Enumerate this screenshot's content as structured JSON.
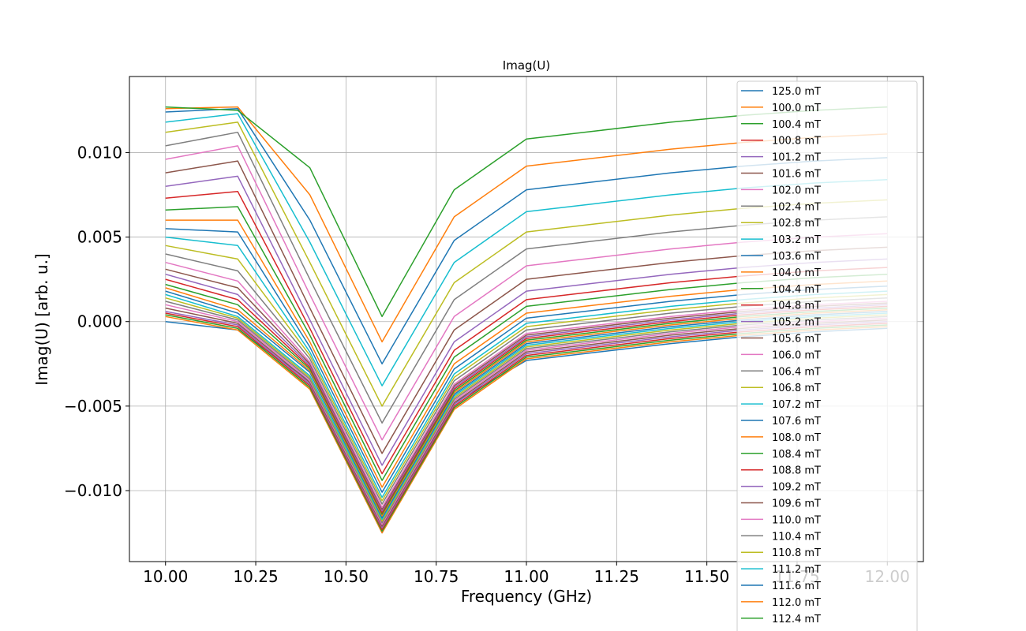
{
  "chart_data": {
    "type": "line",
    "title": "Imag(U)",
    "xlabel": "Frequency (GHz)",
    "ylabel": "Imag(U) [arb. u.]",
    "xlim": [
      9.9,
      12.1
    ],
    "ylim": [
      -0.0142,
      0.0145
    ],
    "x": [
      10.0,
      10.2,
      10.4,
      10.6,
      10.8,
      11.0,
      11.2,
      11.4,
      11.6,
      11.8,
      12.0
    ],
    "x_ticks": [
      10.0,
      10.25,
      10.5,
      10.75,
      11.0,
      11.25,
      11.5,
      11.75,
      12.0
    ],
    "x_tick_labels": [
      "10.00",
      "10.25",
      "10.50",
      "10.75",
      "11.00",
      "11.25",
      "11.50",
      "11.75",
      "12.00"
    ],
    "y_ticks": [
      -0.01,
      -0.005,
      0.0,
      0.005,
      0.01
    ],
    "y_tick_labels": [
      "−0.010",
      "−0.005",
      "0.000",
      "0.005",
      "0.010"
    ],
    "grid": true,
    "legend_position": "right",
    "colors": [
      "#1f77b4",
      "#ff7f0e",
      "#2ca02c",
      "#d62728",
      "#9467bd",
      "#8c564b",
      "#e377c2",
      "#7f7f7f",
      "#bcbd22",
      "#17becf"
    ],
    "series": [
      {
        "name": "125.0 mT",
        "values": [
          0.0,
          -0.0005,
          -0.0035,
          -0.0125,
          -0.0048,
          -0.0023,
          -0.0018,
          -0.0013,
          -0.0009,
          -0.0006,
          -0.0004
        ]
      },
      {
        "name": "100.0 mT",
        "values": [
          0.0003,
          -0.0005,
          -0.004,
          -0.0125,
          -0.0052,
          -0.0022,
          -0.0017,
          -0.0012,
          -0.0008,
          -0.0005,
          -0.0003
        ]
      },
      {
        "name": "100.4 mT",
        "values": [
          0.0004,
          -0.0004,
          -0.0039,
          -0.0124,
          -0.0051,
          -0.0021,
          -0.0016,
          -0.0011,
          -0.0007,
          -0.0004,
          -0.0002
        ]
      },
      {
        "name": "100.8 mT",
        "values": [
          0.0005,
          -0.0003,
          -0.0038,
          -0.0123,
          -0.005,
          -0.002,
          -0.0015,
          -0.001,
          -0.0006,
          -0.0003,
          -0.0001
        ]
      },
      {
        "name": "101.2 mT",
        "values": [
          0.0006,
          -0.0002,
          -0.0037,
          -0.0122,
          -0.0049,
          -0.0019,
          -0.0014,
          -0.0009,
          -0.0005,
          -0.0002,
          0.0
        ]
      },
      {
        "name": "101.6 mT",
        "values": [
          0.0008,
          -0.0001,
          -0.0036,
          -0.0121,
          -0.0048,
          -0.0018,
          -0.0013,
          -0.0008,
          -0.0004,
          -0.0001,
          0.0001
        ]
      },
      {
        "name": "102.0 mT",
        "values": [
          0.001,
          0.0,
          -0.0035,
          -0.012,
          -0.0047,
          -0.0017,
          -0.0012,
          -0.0007,
          -0.0003,
          0.0,
          0.0002
        ]
      },
      {
        "name": "102.4 mT",
        "values": [
          0.0012,
          0.0001,
          -0.0034,
          -0.0119,
          -0.0046,
          -0.0016,
          -0.0011,
          -0.0006,
          -0.0002,
          0.0001,
          0.0003
        ]
      },
      {
        "name": "102.8 mT",
        "values": [
          0.0014,
          0.0002,
          -0.0033,
          -0.0118,
          -0.0045,
          -0.0015,
          -0.001,
          -0.0005,
          -0.0001,
          0.0002,
          0.0004
        ]
      },
      {
        "name": "103.2 mT",
        "values": [
          0.0016,
          0.0003,
          -0.0032,
          -0.0117,
          -0.0044,
          -0.0014,
          -0.0009,
          -0.0004,
          0.0,
          0.0003,
          0.0005
        ]
      },
      {
        "name": "103.6 mT",
        "values": [
          0.0018,
          0.0005,
          -0.003,
          -0.0116,
          -0.0043,
          -0.0013,
          -0.0008,
          -0.0003,
          0.0001,
          0.0004,
          0.0006
        ]
      },
      {
        "name": "104.0 mT",
        "values": [
          0.002,
          0.0007,
          -0.0029,
          -0.0115,
          -0.0042,
          -0.0012,
          -0.0007,
          -0.0002,
          0.0002,
          0.0005,
          0.0007
        ]
      },
      {
        "name": "104.4 mT",
        "values": [
          0.0022,
          0.001,
          -0.0028,
          -0.0114,
          -0.0041,
          -0.0011,
          -0.0006,
          -0.0001,
          0.0003,
          0.0006,
          0.0008
        ]
      },
      {
        "name": "104.8 mT",
        "values": [
          0.0025,
          0.0013,
          -0.0027,
          -0.0113,
          -0.004,
          -0.001,
          -0.0005,
          0.0,
          0.0004,
          0.0007,
          0.0009
        ]
      },
      {
        "name": "105.2 mT",
        "values": [
          0.0028,
          0.0016,
          -0.0026,
          -0.0112,
          -0.0039,
          -0.0009,
          -0.0004,
          0.0001,
          0.0005,
          0.0008,
          0.001
        ]
      },
      {
        "name": "105.6 mT",
        "values": [
          0.0031,
          0.002,
          -0.0025,
          -0.0111,
          -0.0038,
          -0.0008,
          -0.0003,
          0.0002,
          0.0006,
          0.0009,
          0.0011
        ]
      },
      {
        "name": "106.0 mT",
        "values": [
          0.0035,
          0.0024,
          -0.0024,
          -0.011,
          -0.0037,
          -0.0007,
          -0.0002,
          0.0003,
          0.0007,
          0.001,
          0.0012
        ]
      },
      {
        "name": "106.4 mT",
        "values": [
          0.004,
          0.003,
          -0.0022,
          -0.0108,
          -0.0035,
          -0.0005,
          0.0,
          0.0005,
          0.0009,
          0.0012,
          0.0014
        ]
      },
      {
        "name": "106.8 mT",
        "values": [
          0.0045,
          0.0037,
          -0.002,
          -0.0106,
          -0.0033,
          -0.0003,
          0.0002,
          0.0007,
          0.0011,
          0.0014,
          0.0016
        ]
      },
      {
        "name": "107.2 mT",
        "values": [
          0.005,
          0.0045,
          -0.0018,
          -0.0104,
          -0.0031,
          -0.0001,
          0.0004,
          0.0009,
          0.0013,
          0.0016,
          0.0018
        ]
      },
      {
        "name": "107.6 mT",
        "values": [
          0.0055,
          0.0053,
          -0.0015,
          -0.0101,
          -0.0028,
          0.0002,
          0.0007,
          0.0012,
          0.0016,
          0.0019,
          0.0021
        ]
      },
      {
        "name": "108.0 mT",
        "values": [
          0.006,
          0.006,
          -0.0012,
          -0.0098,
          -0.0025,
          0.0005,
          0.001,
          0.0015,
          0.0019,
          0.0022,
          0.0024
        ]
      },
      {
        "name": "108.4 mT",
        "values": [
          0.0066,
          0.0068,
          -0.0008,
          -0.0094,
          -0.0021,
          0.0009,
          0.0014,
          0.0019,
          0.0023,
          0.0026,
          0.0028
        ]
      },
      {
        "name": "108.8 mT",
        "values": [
          0.0073,
          0.0077,
          -0.0004,
          -0.009,
          -0.0017,
          0.0013,
          0.0018,
          0.0023,
          0.0027,
          0.003,
          0.0032
        ]
      },
      {
        "name": "109.2 mT",
        "values": [
          0.008,
          0.0086,
          0.0001,
          -0.0085,
          -0.0012,
          0.0018,
          0.0023,
          0.0028,
          0.0032,
          0.0035,
          0.0037
        ]
      },
      {
        "name": "109.6 mT",
        "values": [
          0.0088,
          0.0095,
          0.0008,
          -0.0078,
          -0.0005,
          0.0025,
          0.003,
          0.0035,
          0.0039,
          0.0042,
          0.0044
        ]
      },
      {
        "name": "110.0 mT",
        "values": [
          0.0096,
          0.0104,
          0.0016,
          -0.007,
          0.0003,
          0.0033,
          0.0038,
          0.0043,
          0.0047,
          0.005,
          0.0052
        ]
      },
      {
        "name": "110.4 mT",
        "values": [
          0.0104,
          0.0112,
          0.0025,
          -0.006,
          0.0013,
          0.0043,
          0.0048,
          0.0053,
          0.0057,
          0.006,
          0.0062
        ]
      },
      {
        "name": "110.8 mT",
        "values": [
          0.0112,
          0.0118,
          0.0035,
          -0.005,
          0.0023,
          0.0053,
          0.0058,
          0.0063,
          0.0067,
          0.007,
          0.0072
        ]
      },
      {
        "name": "111.2 mT",
        "values": [
          0.0118,
          0.0123,
          0.0047,
          -0.0038,
          0.0035,
          0.0065,
          0.007,
          0.0075,
          0.0079,
          0.0082,
          0.0084
        ]
      },
      {
        "name": "111.6 mT",
        "values": [
          0.0124,
          0.0126,
          0.006,
          -0.0025,
          0.0048,
          0.0078,
          0.0083,
          0.0088,
          0.0092,
          0.0095,
          0.0097
        ]
      },
      {
        "name": "112.0 mT",
        "values": [
          0.0126,
          0.0127,
          0.0075,
          -0.0012,
          0.0062,
          0.0092,
          0.0097,
          0.0102,
          0.0106,
          0.0109,
          0.0111
        ]
      },
      {
        "name": "112.4 mT",
        "values": [
          0.0127,
          0.0125,
          0.0091,
          0.0003,
          0.0078,
          0.0108,
          0.0113,
          0.0118,
          0.0122,
          0.0125,
          0.0127
        ]
      }
    ]
  }
}
